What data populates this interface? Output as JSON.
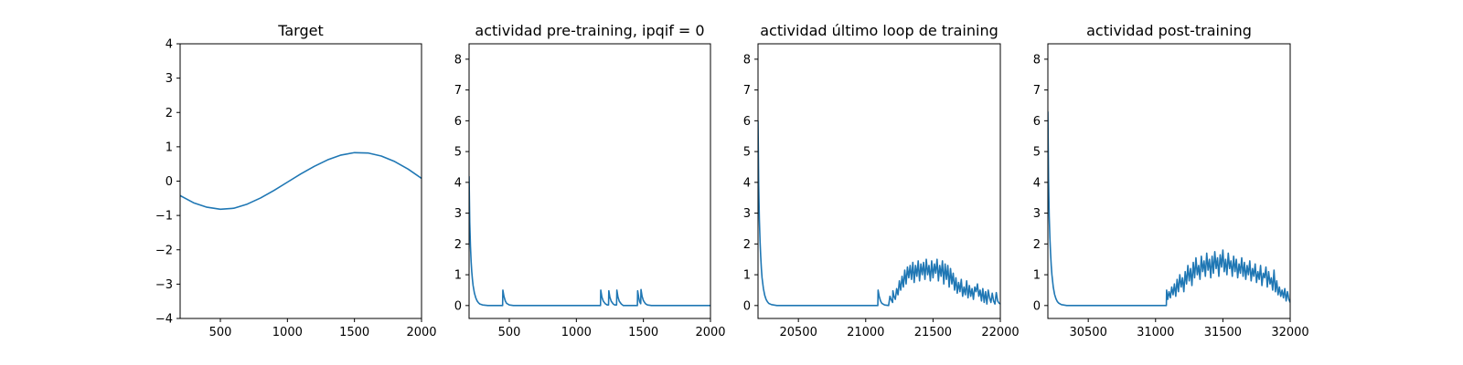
{
  "colors": {
    "line": "#1f77b4"
  },
  "chart_data": [
    {
      "type": "line",
      "title": "Target",
      "xlabel": "",
      "ylabel": "",
      "xlim": [
        200,
        2000
      ],
      "ylim": [
        -4,
        4
      ],
      "xticks": [
        500,
        1000,
        1500,
        2000
      ],
      "xtick_labels": [
        "500",
        "1000",
        "1500",
        "2000"
      ],
      "yticks": [
        -4,
        -3,
        -2,
        -1,
        0,
        1,
        2,
        3,
        4
      ],
      "ytick_labels": [
        "−4",
        "−3",
        "−2",
        "−1",
        "0",
        "1",
        "2",
        "3",
        "4"
      ],
      "grid": false,
      "series": [
        {
          "x": [
            200,
            300,
            400,
            500,
            600,
            700,
            800,
            900,
            1000,
            1100,
            1200,
            1300,
            1400,
            1500,
            1600,
            1700,
            1800,
            1900,
            2000
          ],
          "y": [
            -0.42,
            -0.63,
            -0.76,
            -0.82,
            -0.79,
            -0.67,
            -0.49,
            -0.27,
            -0.03,
            0.21,
            0.43,
            0.62,
            0.76,
            0.83,
            0.82,
            0.73,
            0.57,
            0.35,
            0.08
          ]
        }
      ]
    },
    {
      "type": "line",
      "title": "actividad pre-training, ipqif = 0",
      "xlabel": "",
      "ylabel": "",
      "xlim": [
        200,
        2000
      ],
      "ylim": [
        -0.42,
        8.5
      ],
      "xticks": [
        500,
        1000,
        1500,
        2000
      ],
      "xtick_labels": [
        "500",
        "1000",
        "1500",
        "2000"
      ],
      "yticks": [
        0,
        1,
        2,
        3,
        4,
        5,
        6,
        7,
        8
      ],
      "ytick_labels": [
        "0",
        "1",
        "2",
        "3",
        "4",
        "5",
        "6",
        "7",
        "8"
      ],
      "grid": false,
      "series": [
        {
          "x": [
            200,
            205,
            210,
            215,
            220,
            225,
            230,
            240,
            250,
            260,
            270,
            280,
            300,
            340,
            450,
            452,
            460,
            470,
            480,
            500,
            530,
            1180,
            1182,
            1190,
            1200,
            1215,
            1230,
            1240,
            1242,
            1250,
            1260,
            1275,
            1285,
            1300,
            1302,
            1310,
            1320,
            1335,
            1350,
            1455,
            1457,
            1465,
            1472,
            1480,
            1482,
            1490,
            1500,
            1515,
            1530,
            1560,
            2000
          ],
          "y": [
            4.2,
            2.7,
            1.95,
            1.45,
            1.1,
            0.85,
            0.65,
            0.4,
            0.25,
            0.15,
            0.09,
            0.05,
            0.02,
            0.0,
            0.0,
            0.5,
            0.3,
            0.15,
            0.07,
            0.02,
            0.0,
            0.0,
            0.5,
            0.28,
            0.15,
            0.06,
            0.02,
            0.02,
            0.48,
            0.27,
            0.14,
            0.05,
            0.02,
            0.02,
            0.5,
            0.28,
            0.14,
            0.05,
            0.0,
            0.0,
            0.48,
            0.26,
            0.12,
            0.06,
            0.52,
            0.3,
            0.16,
            0.06,
            0.02,
            0.0,
            0.0
          ]
        }
      ]
    },
    {
      "type": "line",
      "title": "actividad último loop de training",
      "xlabel": "",
      "ylabel": "",
      "xlim": [
        20200,
        22000
      ],
      "ylim": [
        -0.42,
        8.5
      ],
      "xticks": [
        20500,
        21000,
        21500,
        22000
      ],
      "xtick_labels": [
        "20500",
        "21000",
        "21500",
        "22000"
      ],
      "yticks": [
        0,
        1,
        2,
        3,
        4,
        5,
        6,
        7,
        8
      ],
      "ytick_labels": [
        "0",
        "1",
        "2",
        "3",
        "4",
        "5",
        "6",
        "7",
        "8"
      ],
      "grid": false,
      "series": [
        {
          "x": [
            20200,
            20205,
            20210,
            20215,
            20220,
            20225,
            20230,
            20240,
            20250,
            20260,
            20270,
            20280,
            20300,
            20340,
            21090,
            21092,
            21100,
            21110,
            21120,
            21140,
            21170,
            21180,
            21190,
            21200,
            21202,
            21210,
            21220,
            21230,
            21240,
            21250,
            21260,
            21270,
            21280,
            21290,
            21300,
            21310,
            21320,
            21330,
            21340,
            21350,
            21360,
            21370,
            21380,
            21390,
            21400,
            21410,
            21420,
            21430,
            21440,
            21450,
            21460,
            21470,
            21480,
            21490,
            21500,
            21510,
            21520,
            21530,
            21540,
            21550,
            21560,
            21570,
            21580,
            21590,
            21600,
            21610,
            21620,
            21630,
            21640,
            21650,
            21660,
            21670,
            21680,
            21690,
            21700,
            21710,
            21720,
            21730,
            21740,
            21750,
            21760,
            21770,
            21780,
            21790,
            21800,
            21810,
            21820,
            21830,
            21840,
            21850,
            21860,
            21870,
            21880,
            21890,
            21900,
            21910,
            21920,
            21930,
            21940,
            21950,
            21960,
            21970,
            21980,
            21990,
            22000
          ],
          "y": [
            6.0,
            3.9,
            2.8,
            2.1,
            1.6,
            1.2,
            0.9,
            0.55,
            0.33,
            0.2,
            0.12,
            0.07,
            0.03,
            0.0,
            0.0,
            0.5,
            0.3,
            0.15,
            0.07,
            0.02,
            0.0,
            0.3,
            0.18,
            0.1,
            0.48,
            0.3,
            0.2,
            0.55,
            0.35,
            0.8,
            0.5,
            0.95,
            0.6,
            1.15,
            0.7,
            1.25,
            0.9,
            1.3,
            0.85,
            1.4,
            0.75,
            1.3,
            0.95,
            1.45,
            0.8,
            1.35,
            1.0,
            1.4,
            0.85,
            1.5,
            1.0,
            1.3,
            0.8,
            1.45,
            0.9,
            1.35,
            1.05,
            1.5,
            0.8,
            1.3,
            0.95,
            1.45,
            0.7,
            1.35,
            0.85,
            1.3,
            0.6,
            1.2,
            0.7,
            1.05,
            0.5,
            0.9,
            0.4,
            0.75,
            0.45,
            0.85,
            0.3,
            0.6,
            0.35,
            0.8,
            0.25,
            0.65,
            0.3,
            0.55,
            0.2,
            0.6,
            0.45,
            0.7,
            0.3,
            0.5,
            0.15,
            0.55,
            0.1,
            0.45,
            0.05,
            0.5,
            0.25,
            0.1,
            0.4,
            0.15,
            0.05,
            0.42,
            0.15,
            0.08,
            0.05
          ]
        }
      ]
    },
    {
      "type": "line",
      "title": "actividad post-training",
      "xlabel": "",
      "ylabel": "",
      "xlim": [
        30200,
        32000
      ],
      "ylim": [
        -0.42,
        8.5
      ],
      "xticks": [
        30500,
        31000,
        31500,
        32000
      ],
      "xtick_labels": [
        "30500",
        "31000",
        "31500",
        "32000"
      ],
      "yticks": [
        0,
        1,
        2,
        3,
        4,
        5,
        6,
        7,
        8
      ],
      "ytick_labels": [
        "0",
        "1",
        "2",
        "3",
        "4",
        "5",
        "6",
        "7",
        "8"
      ],
      "grid": false,
      "series": [
        {
          "x": [
            30200,
            30205,
            30210,
            30215,
            30220,
            30225,
            30230,
            30240,
            30250,
            30260,
            30270,
            30280,
            30300,
            30340,
            31080,
            31082,
            31090,
            31100,
            31110,
            31120,
            31130,
            31140,
            31150,
            31160,
            31170,
            31180,
            31190,
            31200,
            31210,
            31220,
            31230,
            31240,
            31250,
            31260,
            31270,
            31280,
            31290,
            31300,
            31310,
            31320,
            31330,
            31340,
            31350,
            31360,
            31370,
            31380,
            31390,
            31400,
            31410,
            31420,
            31430,
            31440,
            31450,
            31460,
            31470,
            31480,
            31490,
            31500,
            31510,
            31520,
            31530,
            31540,
            31550,
            31560,
            31570,
            31580,
            31590,
            31600,
            31610,
            31620,
            31630,
            31640,
            31650,
            31660,
            31670,
            31680,
            31690,
            31700,
            31710,
            31720,
            31730,
            31740,
            31750,
            31760,
            31770,
            31780,
            31790,
            31800,
            31810,
            31820,
            31830,
            31840,
            31850,
            31860,
            31870,
            31880,
            31890,
            31900,
            31910,
            31920,
            31930,
            31940,
            31950,
            31960,
            31970,
            31980,
            31990,
            32000
          ],
          "y": [
            6.3,
            4.1,
            2.9,
            2.2,
            1.7,
            1.3,
            1.0,
            0.6,
            0.36,
            0.22,
            0.13,
            0.08,
            0.03,
            0.0,
            0.0,
            0.5,
            0.2,
            0.45,
            0.25,
            0.6,
            0.35,
            0.7,
            0.3,
            0.85,
            0.45,
            1.0,
            0.6,
            0.9,
            0.45,
            1.1,
            0.7,
            1.3,
            0.8,
            1.2,
            0.65,
            1.4,
            0.9,
            1.55,
            1.0,
            1.3,
            0.85,
            1.6,
            1.1,
            1.45,
            0.95,
            1.7,
            1.15,
            1.5,
            0.9,
            1.6,
            1.05,
            1.75,
            1.2,
            1.55,
            0.95,
            1.65,
            1.25,
            1.8,
            1.1,
            1.5,
            1.0,
            1.7,
            1.2,
            1.45,
            0.95,
            1.6,
            1.1,
            1.5,
            0.9,
            1.35,
            1.05,
            1.55,
            0.95,
            1.4,
            0.85,
            1.3,
            1.0,
            1.45,
            0.8,
            1.2,
            0.95,
            1.35,
            0.75,
            1.1,
            0.85,
            1.3,
            0.65,
            1.05,
            0.9,
            1.25,
            0.6,
            1.1,
            0.7,
            0.9,
            0.5,
            1.15,
            0.45,
            0.8,
            0.35,
            0.6,
            0.3,
            0.5,
            0.25,
            0.55,
            0.15,
            0.45,
            0.2,
            0.1
          ]
        }
      ]
    }
  ]
}
